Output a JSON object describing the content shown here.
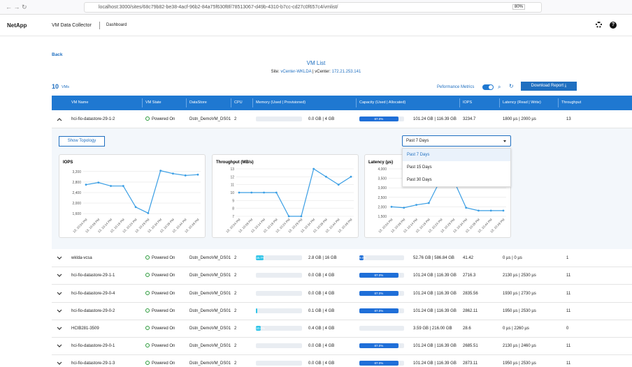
{
  "browser": {
    "url": "localhost:3000/sites/68c79b82-be38-4acf-96b2-84a75f630f8f/78513067-d49b-4310-b7cc-cd27c0f657c4/vmlist/",
    "zoom": "80%"
  },
  "header": {
    "brand": "NetApp",
    "app": "VM Data Collector",
    "nav": "Dashboard"
  },
  "back": "Back",
  "title": "VM List",
  "site": {
    "site_label": "Site:",
    "site": "vCenter-WKLDA",
    "vcenter_label": "| vCenter:",
    "vcenter": "172.21.253.141"
  },
  "summary": {
    "count": "10",
    "count_label": "VMs",
    "toggle_label": "Peformance Metrics",
    "download": "Download Report"
  },
  "table": {
    "columns": [
      "VM Name",
      "VM State",
      "DataStore",
      "CPU",
      "Memory (Used | Provisioned)",
      "Capacity (Used | Allocated)",
      "IOPS",
      "Latency (Read | Write)",
      "Throughput"
    ],
    "rows": [
      {
        "name": "hci-fio-datastore-29-1-2",
        "state": "Powered On",
        "datastore": "Dstn_DemoVM_DS01",
        "cpu": 2,
        "memory_pct": 0,
        "memory": "0.0 GB | 4 GB",
        "capacity_pct": 87,
        "capacity_label": "87.0%",
        "capacity": "101.24 GB | 116.39 GB",
        "iops": 3234.7,
        "latency": "1800 µs | 2000 µs",
        "throughput": 13
      },
      {
        "name": "wklda-vcsa",
        "state": "Powered On",
        "datastore": "Dstn_DemoVM_DS01",
        "cpu": 2,
        "memory_pct": 16.7,
        "memory_label": "16.7%",
        "memory": "2.8 GB | 16 GB",
        "capacity_pct": 9,
        "capacity_label": "9.0%",
        "capacity": "52.76 GB | 586.84 GB",
        "iops": 41.42,
        "latency": "0 µs | 0 µs",
        "throughput": 1
      },
      {
        "name": "hci-fio-datastore-29-1-1",
        "state": "Powered On",
        "datastore": "Dstn_DemoVM_DS01",
        "cpu": 2,
        "memory_pct": 0,
        "memory": "0.0 GB | 4 GB",
        "capacity_pct": 87,
        "capacity_label": "87.0%",
        "capacity": "101.24 GB | 116.39 GB",
        "iops": 2716.3,
        "latency": "2130 µs | 2530 µs",
        "throughput": 11
      },
      {
        "name": "hci-fio-datastore-29-0-4",
        "state": "Powered On",
        "datastore": "Dstn_DemoVM_DS01",
        "cpu": 2,
        "memory_pct": 0,
        "memory": "0.0 GB | 4 GB",
        "capacity_pct": 87,
        "capacity_label": "87.0%",
        "capacity": "101.24 GB | 116.39 GB",
        "iops": 2835.56,
        "latency": "1930 µs | 2730 µs",
        "throughput": 11
      },
      {
        "name": "hci-fio-datastore-29-0-2",
        "state": "Powered On",
        "datastore": "Dstn_DemoVM_DS01",
        "cpu": 2,
        "memory_pct": 2.5,
        "memory": "0.1 GB | 4 GB",
        "capacity_pct": 87,
        "capacity_label": "87.0%",
        "capacity": "101.24 GB | 116.39 GB",
        "iops": 2862.11,
        "latency": "1950 µs | 2530 µs",
        "throughput": 11
      },
      {
        "name": "HCIB281-3509",
        "state": "Powered On",
        "datastore": "Dstn_DemoVM_DS01",
        "cpu": 2,
        "memory_pct": 10,
        "memory_label": "10.0%",
        "memory": "0.4 GB | 4 GB",
        "capacity_pct": 0,
        "capacity": "3.59 GB | 216.00 GB",
        "iops": 28.6,
        "latency": "0 µs | 2260 µs",
        "throughput": 0
      },
      {
        "name": "hci-fio-datastore-29-0-1",
        "state": "Powered On",
        "datastore": "Dstn_DemoVM_DS01",
        "cpu": 2,
        "memory_pct": 0,
        "memory": "0.0 GB | 4 GB",
        "capacity_pct": 87,
        "capacity_label": "87.0%",
        "capacity": "101.24 GB | 116.39 GB",
        "iops": 2685.51,
        "latency": "2130 µs | 2460 µs",
        "throughput": 11
      },
      {
        "name": "hci-fio-datastore-29-1-3",
        "state": "Powered On",
        "datastore": "Dstn_DemoVM_DS01",
        "cpu": 2,
        "memory_pct": 0,
        "memory": "0.0 GB | 4 GB",
        "capacity_pct": 87,
        "capacity_label": "87.0%",
        "capacity": "101.24 GB | 116.39 GB",
        "iops": 2873.11,
        "latency": "1950 µs | 2530 µs",
        "throughput": 11
      }
    ]
  },
  "expanded": {
    "topology": "Show Topology",
    "range": "Past 7 Days",
    "options": [
      "Past 7 Days",
      "Past 15 Days",
      "Past 30 Days"
    ],
    "charts": [
      {
        "type": "line",
        "title": "IOPS",
        "color": "#3a9ee4",
        "categories": [
          "13, 10:04 PM",
          "13, 10:09 PM",
          "13, 10:14 PM",
          "13, 10:19 PM",
          "13, 10:24 PM",
          "13, 10:29 PM",
          "13, 10:34 PM",
          "13, 10:39 PM",
          "13, 10:44 PM",
          "13, 10:49 PM"
        ],
        "values": [
          2700,
          2780,
          2650,
          2650,
          1850,
          1620,
          3230,
          3120,
          3050,
          3080
        ],
        "ylim": [
          1500,
          3300
        ],
        "yticks": [
          {
            "value": 1600,
            "label": "1,600"
          },
          {
            "value": 2000,
            "label": "2,000"
          },
          {
            "value": 2400,
            "label": "2,400"
          },
          {
            "value": 2800,
            "label": "2,800"
          },
          {
            "value": 3200,
            "label": "3,200"
          }
        ],
        "grid": true
      },
      {
        "type": "line",
        "title": "Throughput (MB/s)",
        "color": "#3a9ee4",
        "categories": [
          "13, 10:04 PM",
          "13, 10:09 PM",
          "13, 10:14 PM",
          "13, 10:19 PM",
          "13, 10:24 PM",
          "13, 10:29 PM",
          "13, 10:34 PM",
          "13, 10:39 PM",
          "13, 10:44 PM",
          "13, 10:49 PM"
        ],
        "values": [
          10,
          10,
          10,
          10,
          7,
          7,
          13,
          12,
          11,
          12
        ],
        "ylim": [
          7,
          13
        ],
        "yticks": [
          7,
          8,
          9,
          10,
          11,
          12,
          13
        ],
        "grid": true
      },
      {
        "type": "line",
        "title": "Latency (µs)",
        "color": "#3a9ee4",
        "categories": [
          "13, 10:04 PM",
          "13, 10:09 PM",
          "13, 10:14 PM",
          "13, 10:19 PM",
          "13, 10:24 PM",
          "13, 10:29 PM",
          "13, 10:34 PM",
          "13, 10:39 PM",
          "13, 10:44 PM",
          "13, 10:49 PM"
        ],
        "values": [
          2000,
          1950,
          2100,
          2200,
          3500,
          3400,
          1950,
          1800,
          1800,
          1800
        ],
        "ylim": [
          1500,
          4000
        ],
        "yticks": [
          {
            "value": 1500,
            "label": "1,500"
          },
          {
            "value": 2000,
            "label": "2,000"
          },
          {
            "value": 2500,
            "label": "2,500"
          },
          {
            "value": 3000,
            "label": "3,000"
          },
          {
            "value": 3500,
            "label": "3,500"
          },
          {
            "value": 4000,
            "label": "4,000"
          }
        ],
        "grid": true
      }
    ]
  }
}
